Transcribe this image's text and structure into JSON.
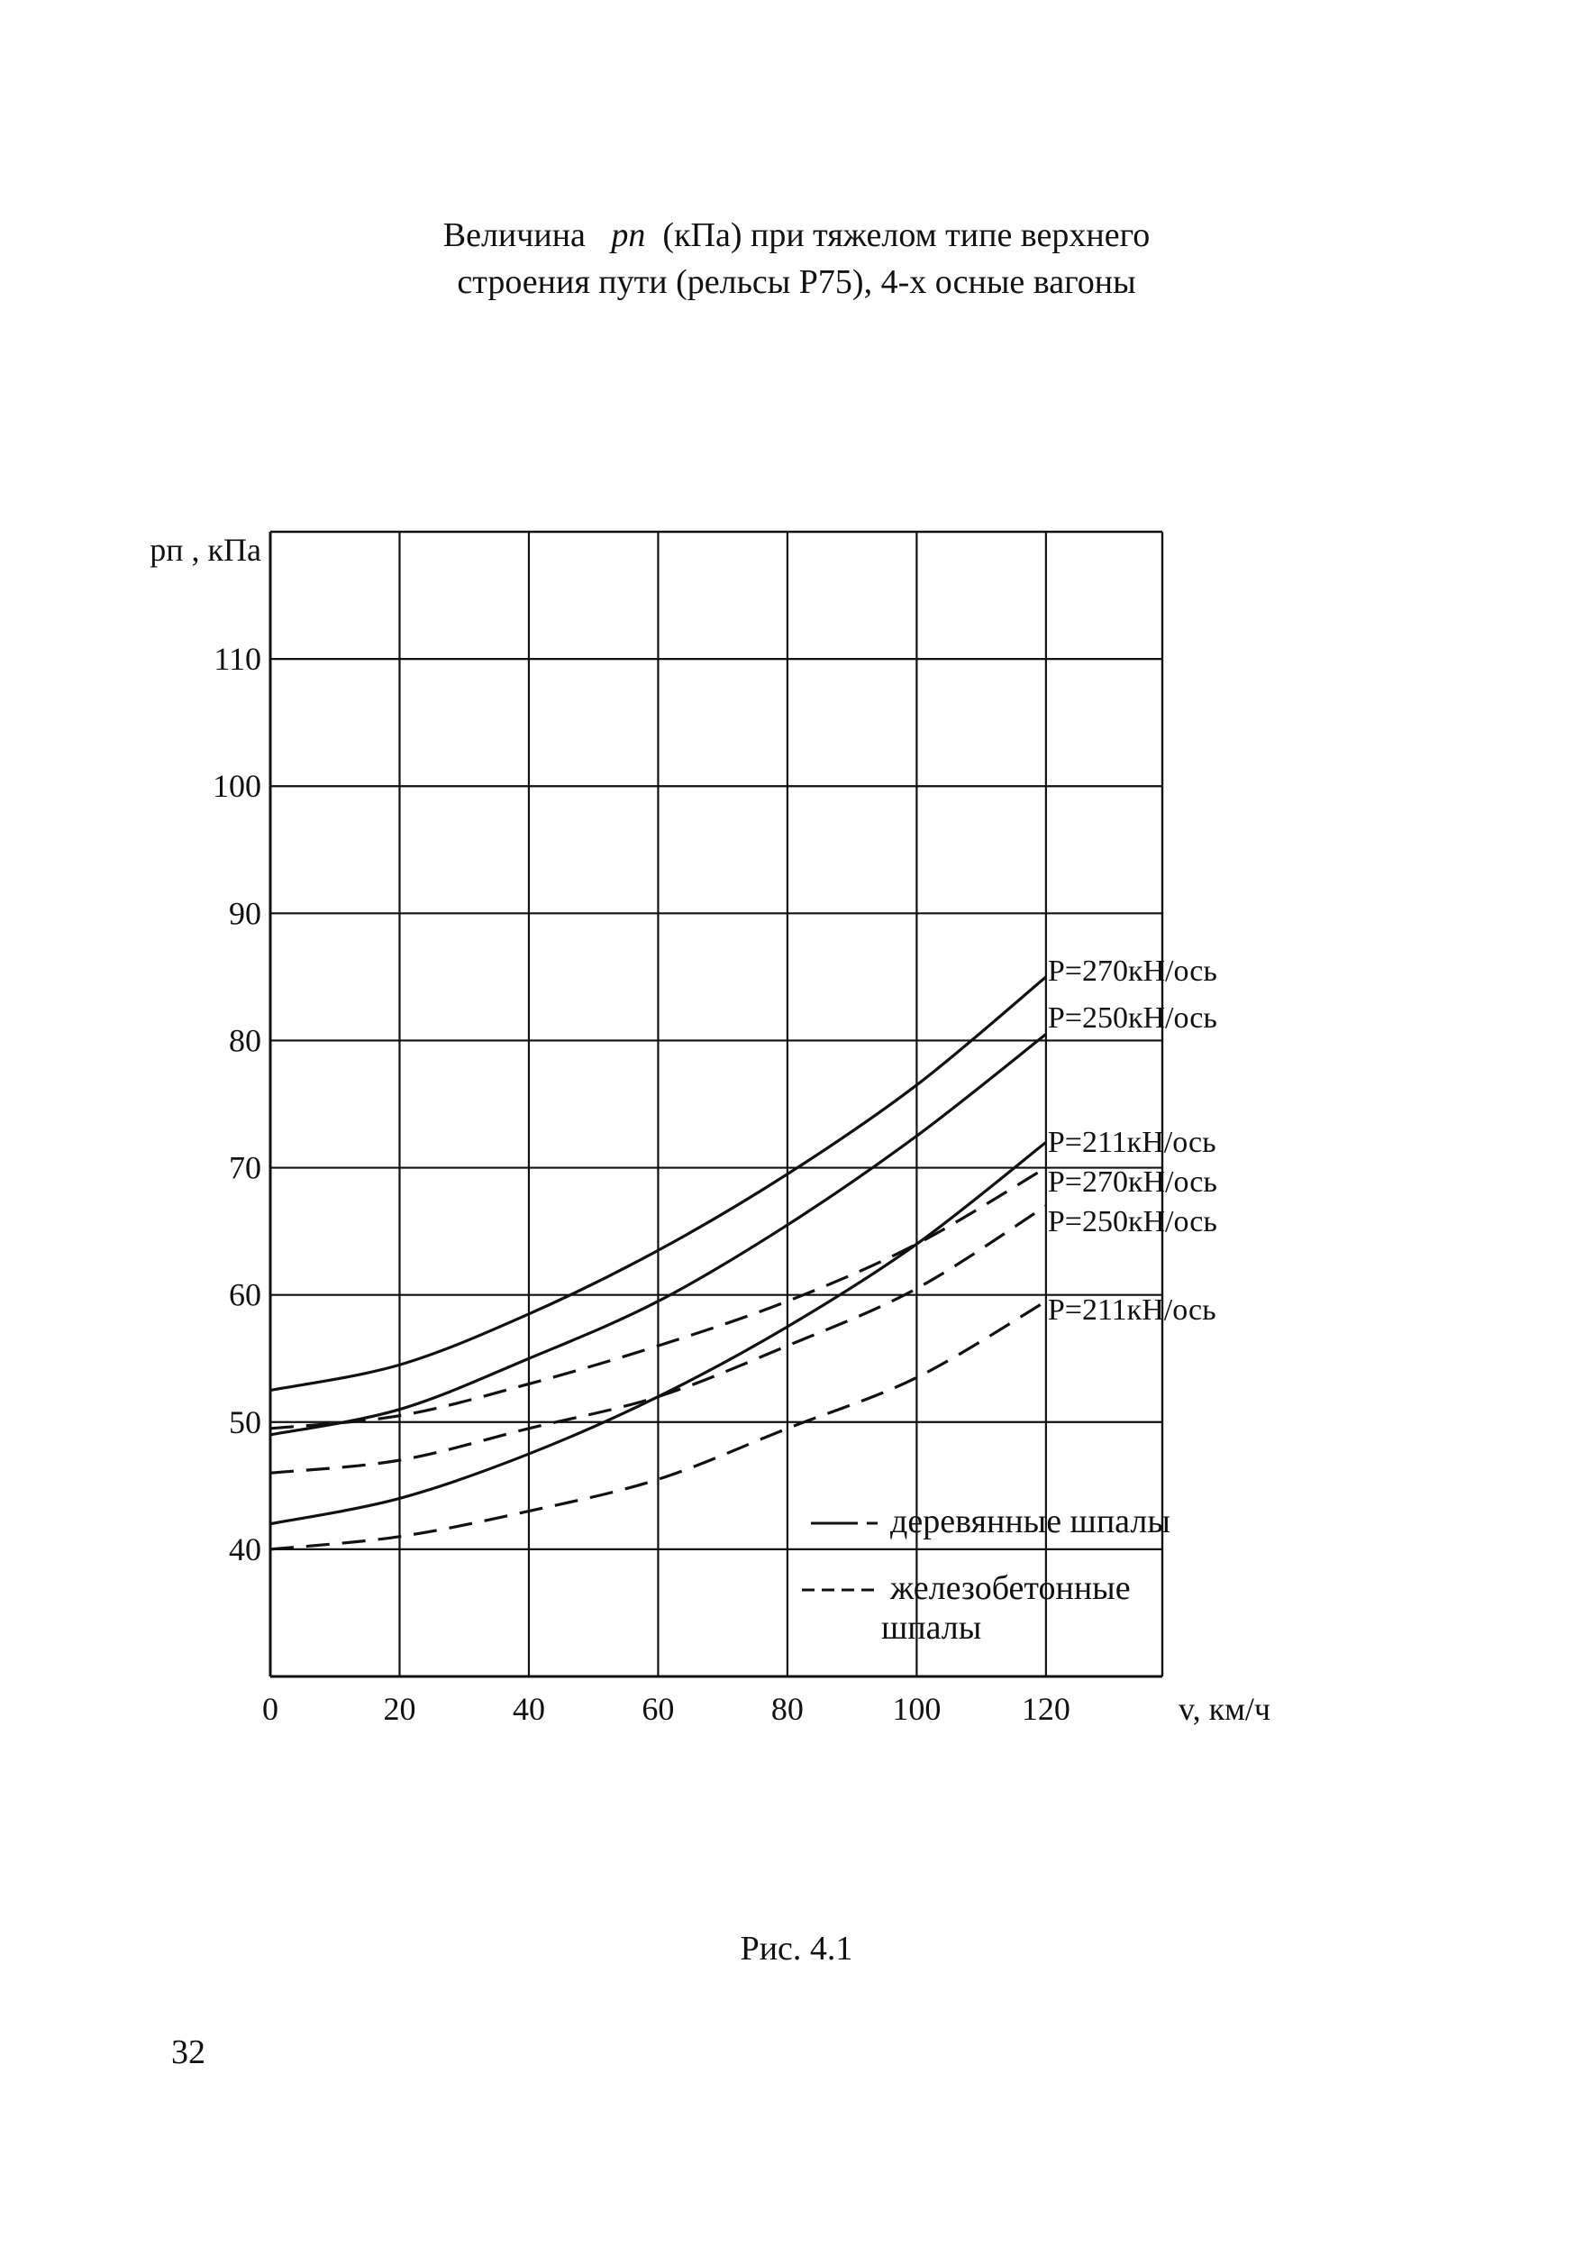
{
  "page": {
    "title_line1_a": "Величина",
    "title_var": "pп",
    "title_line1_b": "(кПа) при тяжелом типе верхнего",
    "title_line2": "строения пути (рельсы Р75), 4-х осные вагоны",
    "caption": "Рис. 4.1",
    "page_number": "32"
  },
  "chart_data": {
    "type": "line",
    "title": "Величина pп (кПа) при тяжелом типе верхнего строения пути (рельсы Р75), 4-х осные вагоны",
    "ylabel": "pп , кПа",
    "xlabel": "v, км/ч",
    "xlim": [
      0,
      138
    ],
    "ylim": [
      30,
      120
    ],
    "x_ticks": [
      0,
      20,
      40,
      60,
      80,
      100,
      120
    ],
    "x_tick_labels": [
      "0",
      "20",
      "40",
      "60",
      "80",
      "100",
      "120"
    ],
    "y_ticks": [
      40,
      50,
      60,
      70,
      80,
      90,
      100,
      110
    ],
    "y_tick_labels": [
      "40",
      "50",
      "60",
      "70",
      "80",
      "90",
      "100",
      "110"
    ],
    "grid": true,
    "x": [
      0,
      20,
      40,
      60,
      80,
      100,
      120
    ],
    "series": [
      {
        "name": "P=270кН/ось",
        "group": "деревянные шпалы",
        "style": "solid",
        "values": [
          52.5,
          54.5,
          58.5,
          63.5,
          69.5,
          76.5,
          85
        ]
      },
      {
        "name": "P=250кН/ось",
        "group": "деревянные шпалы",
        "style": "solid",
        "values": [
          49,
          51,
          55,
          59.5,
          65.5,
          72.5,
          80.5
        ]
      },
      {
        "name": "P=211кН/ось",
        "group": "деревянные шпалы",
        "style": "solid",
        "values": [
          42,
          44,
          47.5,
          52,
          57.5,
          64,
          72
        ]
      },
      {
        "name": "P=270кН/ось",
        "group": "железобетонные шпалы",
        "style": "dashed",
        "values": [
          49.5,
          50.5,
          53,
          56,
          59.5,
          64,
          70
        ]
      },
      {
        "name": "P=250кН/ось",
        "group": "железобетонные шпалы",
        "style": "dashed",
        "values": [
          46,
          47,
          49.5,
          52,
          56,
          60.5,
          67
        ]
      },
      {
        "name": "P=211кН/ось",
        "group": "железобетонные шпалы",
        "style": "dashed",
        "values": [
          40,
          41,
          43,
          45.5,
          49.5,
          53.5,
          59.5
        ]
      }
    ],
    "legend": {
      "placement": "bottom-right",
      "items": [
        {
          "label": "деревянные шпалы",
          "style": "solid"
        },
        {
          "label_line1": "железобетонные",
          "label_line2": "шпалы",
          "style": "dashed"
        }
      ]
    },
    "series_labels": [
      "P=270кН/ось",
      "P=250кН/ось",
      "P=211кН/ось",
      "P=270кН/ось",
      "P=250кН/ось",
      "P=211кН/ось"
    ],
    "line_color": "#111111"
  }
}
